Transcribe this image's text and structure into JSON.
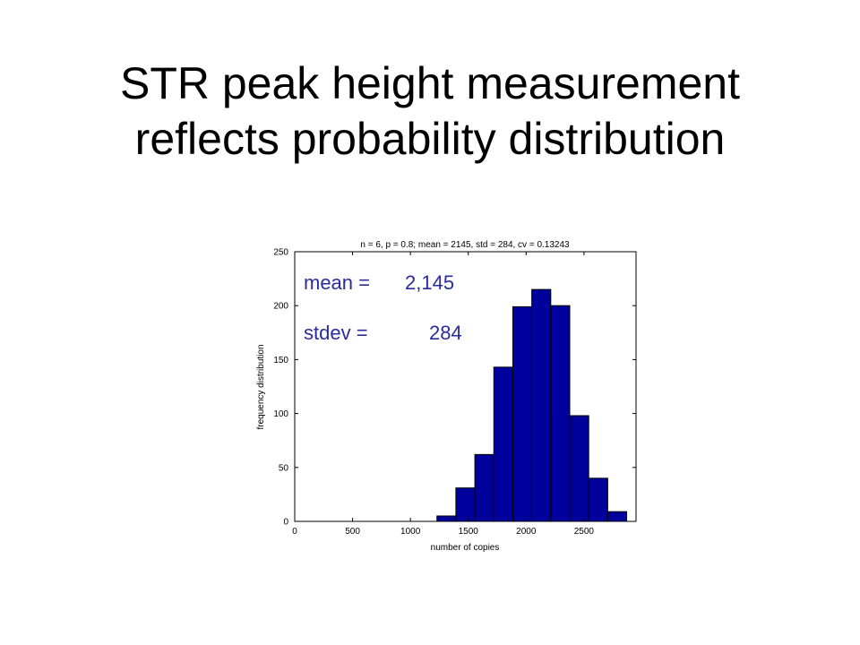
{
  "slide": {
    "title_line1": "STR peak height measurement",
    "title_line2": "reflects probability distribution"
  },
  "chart_data": {
    "type": "bar",
    "title": "n = 6, p = 0.8; mean = 2145, std = 284, cv = 0.13243",
    "xlabel": "number of copies",
    "ylabel": "frequency distribution",
    "xlim": [
      0,
      2950
    ],
    "ylim": [
      0,
      250
    ],
    "xticks": [
      0,
      500,
      1000,
      1500,
      2000,
      2500
    ],
    "yticks": [
      0,
      50,
      100,
      150,
      200,
      250
    ],
    "bin_width": 164,
    "bin_centers": [
      1311,
      1475,
      1639,
      1803,
      1967,
      2131,
      2295,
      2459,
      2623,
      2787
    ],
    "values": [
      5,
      31,
      62,
      143,
      199,
      215,
      200,
      98,
      40,
      9
    ],
    "bar_color": "#00009c",
    "annotations": [
      {
        "label": "mean =",
        "value": "2,145"
      },
      {
        "label": "stdev =",
        "value": "284"
      }
    ],
    "annotation_color": "#2b2ba0",
    "grid": false
  }
}
